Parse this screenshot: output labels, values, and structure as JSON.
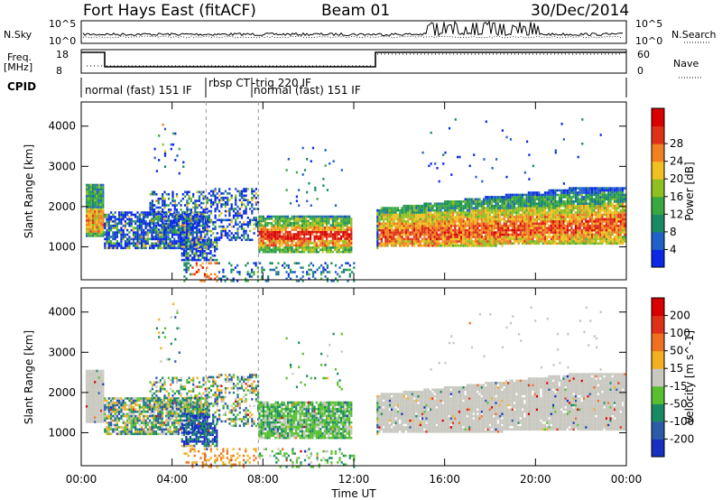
{
  "header": {
    "station": "Fort Hays East (fitACF)",
    "beam": "Beam 01",
    "date": "30/Dec/2014"
  },
  "labels": {
    "nsky": "N.Sky",
    "nsearch": "N.Search",
    "freq_top": "Freq.",
    "freq_unit": "[MHz]",
    "cpid": "CPID",
    "nave": "Nave",
    "nsky_hi": "10^5",
    "nsky_lo": "10^0",
    "freq_hi": "18",
    "freq_lo": "8",
    "nave_hi": "60",
    "nave_lo": "0"
  },
  "modes": [
    {
      "label": "normal (fast) 151 IF",
      "start": 0,
      "end": 5.5
    },
    {
      "label": "rbsp CT",
      "start": 5.5,
      "end": 7.8
    },
    {
      "label": "-trig 220 IF",
      "start": 7.8,
      "end": 9.3
    },
    {
      "label": "normal (fast) 151 IF",
      "start": 7.9,
      "end": 12.0
    }
  ],
  "chart_data": [
    {
      "type": "heatmap",
      "panel": "power",
      "ylabel": "Slant Range [km]",
      "xlabel": "Time UT",
      "xlim": [
        0,
        24
      ],
      "ylim": [
        180,
        4600
      ],
      "yticks": [
        1000,
        2000,
        3000,
        4000
      ],
      "xticks": [
        "00:00",
        "04:00",
        "08:00",
        "12:00",
        "16:00",
        "20:00",
        "00:00"
      ],
      "colorbar": {
        "label": "Power [dB]",
        "ticks": [
          "4",
          "8",
          "12",
          "16",
          "20",
          "24",
          "28"
        ],
        "colors": [
          "#0a28e6",
          "#2060c8",
          "#1a8a64",
          "#3aa840",
          "#90c020",
          "#f0c020",
          "#f08020",
          "#e03018",
          "#d80000"
        ]
      }
    },
    {
      "type": "heatmap",
      "panel": "velocity",
      "ylabel": "Slant Range [km]",
      "xlabel": "Time UT",
      "xlim": [
        0,
        24
      ],
      "ylim": [
        180,
        4600
      ],
      "yticks": [
        1000,
        2000,
        3000,
        4000
      ],
      "xticks": [
        "00:00",
        "04:00",
        "08:00",
        "12:00",
        "16:00",
        "20:00",
        "00:00"
      ],
      "colorbar": {
        "label": "Velocity [m s^-1]",
        "ticks": [
          "200",
          "100",
          "50",
          "15",
          "-15",
          "-50",
          "-100",
          "-200"
        ],
        "colors": [
          "#1830c0",
          "#2a5aa8",
          "#1a8a64",
          "#58c030",
          "#c8c8c0",
          "#f0b020",
          "#f07020",
          "#e03018",
          "#d80000"
        ]
      }
    }
  ]
}
